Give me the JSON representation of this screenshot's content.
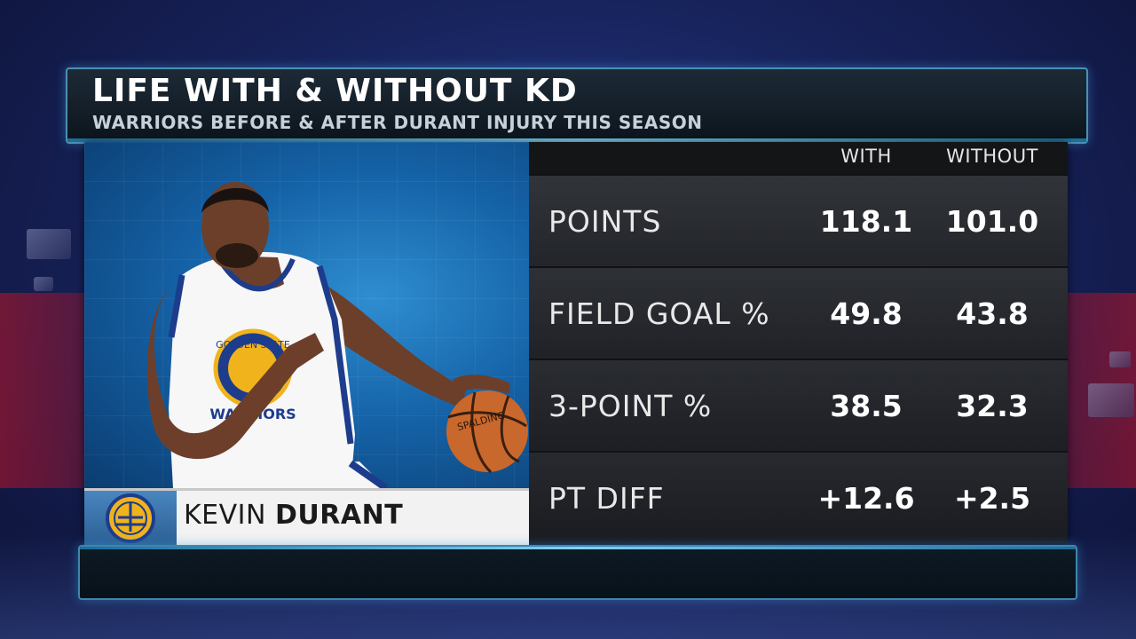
{
  "graphic": {
    "title": "LIFE WITH & WITHOUT KD",
    "subtitle": "WARRIORS BEFORE & AFTER DURANT INJURY THIS SEASON"
  },
  "player": {
    "first_name": "KEVIN",
    "last_name": "DURANT",
    "team_logo": "warriors-logo-icon",
    "jersey_text_top": "GOLDEN STATE",
    "jersey_text_bottom": "WARRIORS",
    "ball_text": "SPALDING"
  },
  "columns": {
    "with": "WITH",
    "without": "WITHOUT"
  },
  "stats": [
    {
      "label": "POINTS",
      "with": "118.1",
      "without": "101.0"
    },
    {
      "label": "FIELD GOAL %",
      "with": "49.8",
      "without": "43.8"
    },
    {
      "label": "3-POINT %",
      "with": "38.5",
      "without": "32.3"
    },
    {
      "label": "PT DIFF",
      "with": "+12.6",
      "without": "+2.5"
    }
  ],
  "colors": {
    "accent": "#4d8fb3",
    "team_blue": "#2b5e92",
    "team_gold": "#f0b31c"
  }
}
